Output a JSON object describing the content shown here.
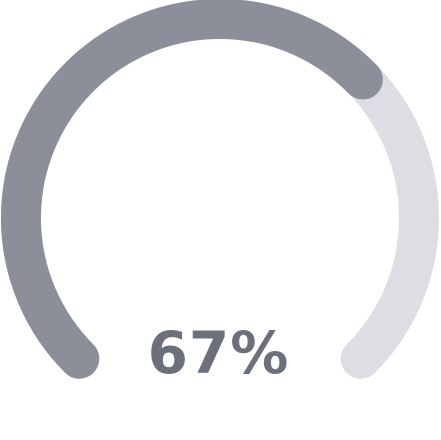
{
  "gauge": {
    "value_text": "67%",
    "fraction": 0.67,
    "colors": {
      "track": "#dcdee3",
      "fill": "#8a8f99",
      "text": "#6b707a"
    }
  }
}
